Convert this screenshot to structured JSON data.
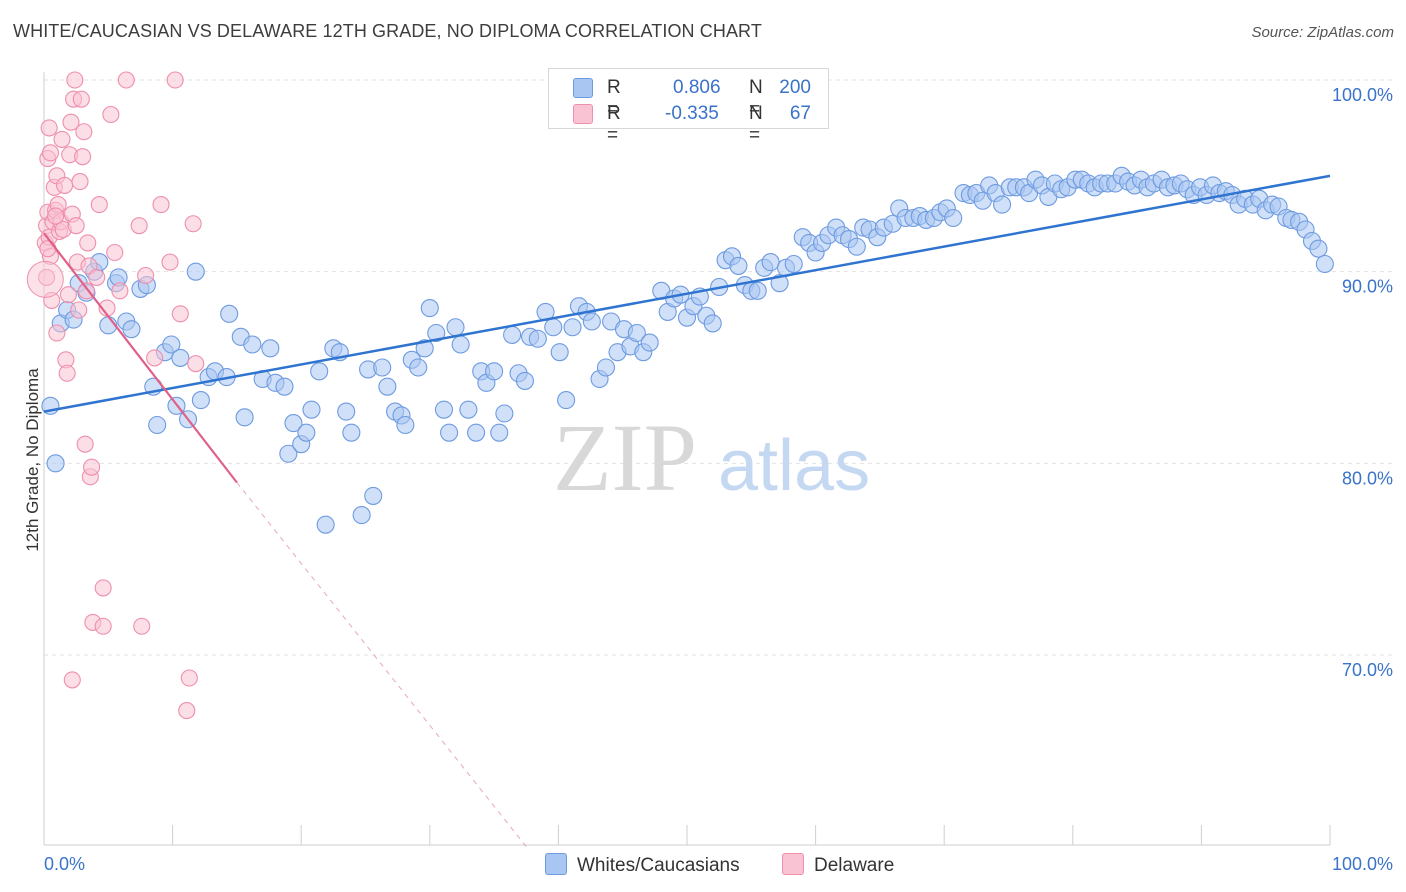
{
  "title": "WHITE/CAUCASIAN VS DELAWARE 12TH GRADE, NO DIPLOMA CORRELATION CHART",
  "source": "Source: ZipAtlas.com",
  "watermark": {
    "zip": "ZIP",
    "atlas": "atlas"
  },
  "colors": {
    "blue_fill": "#a9c6f2",
    "blue_stroke": "#6e9be0",
    "blue_line": "#2f74d0",
    "pink_fill": "#f9c3d4",
    "pink_stroke": "#ee8fac",
    "pink_line": "#e0608a",
    "axis_text": "#3a73c9",
    "grid": "#e2e2e2"
  },
  "legend": {
    "blue": {
      "r_label": "R =",
      "r_value": "0.806",
      "n_label": "N =",
      "n_value": "200"
    },
    "pink": {
      "r_label": "R =",
      "r_value": "-0.335",
      "n_label": "N =",
      "n_value": "67"
    }
  },
  "bottom_legend": {
    "blue": "Whites/Caucasians",
    "pink": "Delaware"
  },
  "chart_data": {
    "type": "scatter",
    "title": "WHITE/CAUCASIAN VS DELAWARE 12TH GRADE, NO DIPLOMA CORRELATION CHART",
    "xlabel": "",
    "ylabel": "12th Grade, No Diploma",
    "x_tick_labels": [
      "0.0%",
      "100.0%"
    ],
    "y_tick_labels": [
      "70.0%",
      "80.0%",
      "90.0%",
      "100.0%"
    ],
    "xlim": [
      0,
      100
    ],
    "ylim": [
      60,
      101
    ],
    "grid": true,
    "series": [
      {
        "name": "Whites/Caucasians",
        "color": "#a9c6f2",
        "trend": {
          "x": [
            0,
            100
          ],
          "y": [
            82.7,
            95.0
          ]
        },
        "points": [
          [
            0.5,
            83
          ],
          [
            0.9,
            80
          ],
          [
            1.3,
            87.3
          ],
          [
            1.8,
            88
          ],
          [
            2.3,
            87.5
          ],
          [
            2.7,
            89.4
          ],
          [
            3.3,
            88.9
          ],
          [
            3.9,
            90
          ],
          [
            4.3,
            90.5
          ],
          [
            5,
            87.2
          ],
          [
            5.6,
            89.4
          ],
          [
            5.8,
            89.7
          ],
          [
            6.4,
            87.4
          ],
          [
            6.8,
            87
          ],
          [
            7.5,
            89.1
          ],
          [
            8,
            89.3
          ],
          [
            8.5,
            84
          ],
          [
            8.8,
            82
          ],
          [
            9.4,
            85.8
          ],
          [
            9.9,
            86.2
          ],
          [
            10.3,
            83
          ],
          [
            10.6,
            85.5
          ],
          [
            11.2,
            82.3
          ],
          [
            11.8,
            90
          ],
          [
            12.2,
            83.3
          ],
          [
            12.8,
            84.5
          ],
          [
            13.3,
            84.8
          ],
          [
            14.2,
            84.5
          ],
          [
            14.4,
            87.8
          ],
          [
            15.3,
            86.6
          ],
          [
            15.6,
            82.4
          ],
          [
            16.2,
            86.2
          ],
          [
            17,
            84.4
          ],
          [
            17.6,
            86
          ],
          [
            18,
            84.2
          ],
          [
            18.7,
            84
          ],
          [
            19,
            80.5
          ],
          [
            19.4,
            82.1
          ],
          [
            20,
            81
          ],
          [
            20.4,
            81.6
          ],
          [
            20.8,
            82.8
          ],
          [
            21.4,
            84.8
          ],
          [
            21.9,
            76.8
          ],
          [
            22.5,
            86
          ],
          [
            23,
            85.8
          ],
          [
            23.5,
            82.7
          ],
          [
            23.9,
            81.6
          ],
          [
            24.7,
            77.3
          ],
          [
            25.2,
            84.9
          ],
          [
            25.6,
            78.3
          ],
          [
            26.3,
            85
          ],
          [
            26.7,
            84
          ],
          [
            27.3,
            82.7
          ],
          [
            27.8,
            82.5
          ],
          [
            28.1,
            82
          ],
          [
            28.6,
            85.4
          ],
          [
            29.1,
            85
          ],
          [
            29.6,
            86
          ],
          [
            30,
            88.1
          ],
          [
            30.5,
            86.8
          ],
          [
            31.1,
            82.8
          ],
          [
            31.5,
            81.6
          ],
          [
            32,
            87.1
          ],
          [
            32.4,
            86.2
          ],
          [
            33,
            82.8
          ],
          [
            33.6,
            81.6
          ],
          [
            34,
            84.8
          ],
          [
            34.4,
            84.2
          ],
          [
            35,
            84.8
          ],
          [
            35.4,
            81.6
          ],
          [
            35.8,
            82.6
          ],
          [
            36.4,
            86.7
          ],
          [
            36.9,
            84.7
          ],
          [
            37.4,
            84.3
          ],
          [
            37.8,
            86.6
          ],
          [
            38.4,
            86.5
          ],
          [
            39,
            87.9
          ],
          [
            39.6,
            87.1
          ],
          [
            40.1,
            85.8
          ],
          [
            40.6,
            83.3
          ],
          [
            41.1,
            87.1
          ],
          [
            41.6,
            88.2
          ],
          [
            42.2,
            87.9
          ],
          [
            42.6,
            87.4
          ],
          [
            43.2,
            84.4
          ],
          [
            43.7,
            85
          ],
          [
            44.1,
            87.4
          ],
          [
            44.6,
            85.8
          ],
          [
            45.1,
            87
          ],
          [
            45.6,
            86.1
          ],
          [
            46.1,
            86.8
          ],
          [
            46.6,
            85.8
          ],
          [
            47.1,
            86.3
          ],
          [
            48,
            89
          ],
          [
            48.5,
            87.9
          ],
          [
            49,
            88.6
          ],
          [
            49.5,
            88.8
          ],
          [
            50,
            87.6
          ],
          [
            50.5,
            88.2
          ],
          [
            51,
            88.7
          ],
          [
            51.5,
            87.7
          ],
          [
            52,
            87.3
          ],
          [
            52.5,
            89.2
          ],
          [
            53,
            90.6
          ],
          [
            53.5,
            90.8
          ],
          [
            54,
            90.3
          ],
          [
            54.5,
            89.3
          ],
          [
            55,
            89
          ],
          [
            55.5,
            89
          ],
          [
            56,
            90.2
          ],
          [
            56.5,
            90.5
          ],
          [
            57.2,
            89.4
          ],
          [
            57.7,
            90.2
          ],
          [
            58.3,
            90.4
          ],
          [
            59,
            91.8
          ],
          [
            59.5,
            91.5
          ],
          [
            60,
            91
          ],
          [
            60.5,
            91.5
          ],
          [
            61,
            91.9
          ],
          [
            61.6,
            92.3
          ],
          [
            62.1,
            91.9
          ],
          [
            62.6,
            91.7
          ],
          [
            63.2,
            91.3
          ],
          [
            63.7,
            92.3
          ],
          [
            64.2,
            92.2
          ],
          [
            64.8,
            91.8
          ],
          [
            65.3,
            92.3
          ],
          [
            66,
            92.5
          ],
          [
            66.5,
            93.3
          ],
          [
            67,
            92.8
          ],
          [
            67.6,
            92.8
          ],
          [
            68.1,
            92.9
          ],
          [
            68.6,
            92.7
          ],
          [
            69.2,
            92.8
          ],
          [
            69.7,
            93.1
          ],
          [
            70.2,
            93.3
          ],
          [
            70.7,
            92.8
          ],
          [
            71.5,
            94.1
          ],
          [
            72,
            94
          ],
          [
            72.5,
            94.1
          ],
          [
            73,
            93.7
          ],
          [
            73.5,
            94.5
          ],
          [
            74,
            94.1
          ],
          [
            74.5,
            93.5
          ],
          [
            75.1,
            94.4
          ],
          [
            75.6,
            94.4
          ],
          [
            76.2,
            94.4
          ],
          [
            76.6,
            94.1
          ],
          [
            77.1,
            94.8
          ],
          [
            77.6,
            94.5
          ],
          [
            78.1,
            93.9
          ],
          [
            78.6,
            94.6
          ],
          [
            79.1,
            94.3
          ],
          [
            79.6,
            94.4
          ],
          [
            80.2,
            94.8
          ],
          [
            80.7,
            94.8
          ],
          [
            81.2,
            94.6
          ],
          [
            81.7,
            94.4
          ],
          [
            82.2,
            94.6
          ],
          [
            82.7,
            94.6
          ],
          [
            83.3,
            94.6
          ],
          [
            83.8,
            95
          ],
          [
            84.3,
            94.7
          ],
          [
            84.8,
            94.5
          ],
          [
            85.3,
            94.8
          ],
          [
            85.8,
            94.4
          ],
          [
            86.3,
            94.6
          ],
          [
            86.9,
            94.8
          ],
          [
            87.4,
            94.4
          ],
          [
            87.9,
            94.5
          ],
          [
            88.4,
            94.6
          ],
          [
            88.9,
            94.3
          ],
          [
            89.4,
            94
          ],
          [
            89.9,
            94.4
          ],
          [
            90.4,
            94
          ],
          [
            90.9,
            94.5
          ],
          [
            91.4,
            94.1
          ],
          [
            91.9,
            94.2
          ],
          [
            92.4,
            94
          ],
          [
            92.9,
            93.5
          ],
          [
            93.4,
            93.8
          ],
          [
            94,
            93.5
          ],
          [
            94.5,
            93.8
          ],
          [
            95,
            93.2
          ],
          [
            95.5,
            93.5
          ],
          [
            96,
            93.4
          ],
          [
            96.6,
            92.8
          ],
          [
            97,
            92.7
          ],
          [
            97.6,
            92.6
          ],
          [
            98.1,
            92.2
          ],
          [
            98.6,
            91.6
          ],
          [
            99.1,
            91.2
          ],
          [
            99.6,
            90.4
          ]
        ]
      },
      {
        "name": "Delaware",
        "color": "#f9c3d4",
        "trend": {
          "x": [
            0,
            15
          ],
          "y": [
            92.0,
            79.0
          ]
        },
        "trend_extension": {
          "x": [
            15,
            37.5
          ],
          "y": [
            79.0,
            60.0
          ]
        },
        "points": [
          [
            0.1,
            91.5
          ],
          [
            0.2,
            92.4
          ],
          [
            0.3,
            93.1
          ],
          [
            0.4,
            91.8
          ],
          [
            0.5,
            90.8
          ],
          [
            0.6,
            88.5
          ],
          [
            0.7,
            92.6
          ],
          [
            0.8,
            94.4
          ],
          [
            0.9,
            93.2
          ],
          [
            1,
            95
          ],
          [
            1.1,
            93.5
          ],
          [
            1.2,
            92.1
          ],
          [
            1.3,
            92.6
          ],
          [
            1.4,
            96.9
          ],
          [
            1.5,
            92.2
          ],
          [
            1.6,
            94.5
          ],
          [
            1.7,
            85.4
          ],
          [
            1.8,
            84.7
          ],
          [
            1.9,
            88.8
          ],
          [
            2,
            96.1
          ],
          [
            2.1,
            97.8
          ],
          [
            2.2,
            93
          ],
          [
            2.3,
            99
          ],
          [
            2.4,
            100
          ],
          [
            2.5,
            92.4
          ],
          [
            2.6,
            90.5
          ],
          [
            2.7,
            88
          ],
          [
            2.8,
            94.7
          ],
          [
            2.9,
            99
          ],
          [
            3,
            96
          ],
          [
            3.1,
            97.3
          ],
          [
            3.2,
            81
          ],
          [
            3.3,
            89
          ],
          [
            3.4,
            91.5
          ],
          [
            3.5,
            90.3
          ],
          [
            3.6,
            79.3
          ],
          [
            3.7,
            79.8
          ],
          [
            3.8,
            71.7
          ],
          [
            4.1,
            89.7
          ],
          [
            4.3,
            93.5
          ],
          [
            4.6,
            73.5
          ],
          [
            4.6,
            71.5
          ],
          [
            4.9,
            88.1
          ],
          [
            5.2,
            98.2
          ],
          [
            5.5,
            91
          ],
          [
            5.9,
            89
          ],
          [
            6.4,
            100
          ],
          [
            7.4,
            92.4
          ],
          [
            7.6,
            71.5
          ],
          [
            7.9,
            89.8
          ],
          [
            8.6,
            85.5
          ],
          [
            9.1,
            93.5
          ],
          [
            9.8,
            90.5
          ],
          [
            10.2,
            100
          ],
          [
            10.6,
            87.8
          ],
          [
            11.1,
            67.1
          ],
          [
            11.3,
            68.8
          ],
          [
            11.6,
            92.5
          ],
          [
            11.8,
            85.2
          ],
          [
            2.2,
            68.7
          ],
          [
            1.0,
            86.8
          ],
          [
            0.3,
            95.9
          ],
          [
            0.4,
            97.5
          ],
          [
            0.5,
            96.2
          ],
          [
            0.3,
            91.2
          ],
          [
            0.2,
            89.7
          ],
          [
            0.9,
            92.9
          ]
        ]
      }
    ]
  }
}
